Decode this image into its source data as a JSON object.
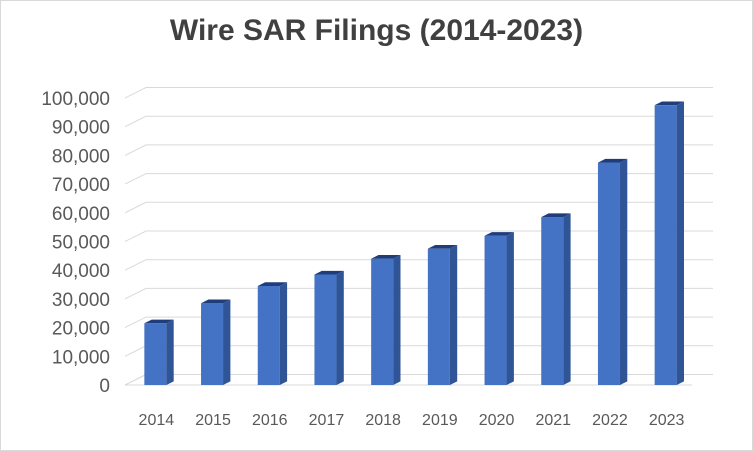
{
  "chart_data": {
    "type": "bar",
    "title": "Wire SAR Filings (2014-2023)",
    "xlabel": "",
    "ylabel": "",
    "categories": [
      "2014",
      "2015",
      "2016",
      "2017",
      "2018",
      "2019",
      "2020",
      "2021",
      "2022",
      "2023"
    ],
    "values": [
      21500,
      28500,
      34500,
      38500,
      44000,
      47500,
      52000,
      58500,
      77500,
      97500
    ],
    "ylim": [
      0,
      100000
    ],
    "yticks": [
      0,
      10000,
      20000,
      30000,
      40000,
      50000,
      60000,
      70000,
      80000,
      90000,
      100000
    ],
    "ytick_labels": [
      "0",
      "10,000",
      "20,000",
      "30,000",
      "40,000",
      "50,000",
      "60,000",
      "70,000",
      "80,000",
      "90,000",
      "100,000"
    ],
    "grid": true,
    "legend": "none",
    "bar_style": "3d-column",
    "colors": {
      "bar_front": "#4472c4",
      "bar_side": "#2f5597",
      "bar_top": "#1f3d7a",
      "grid": "#d9d9d9",
      "text": "#595959",
      "title": "#404040"
    }
  }
}
